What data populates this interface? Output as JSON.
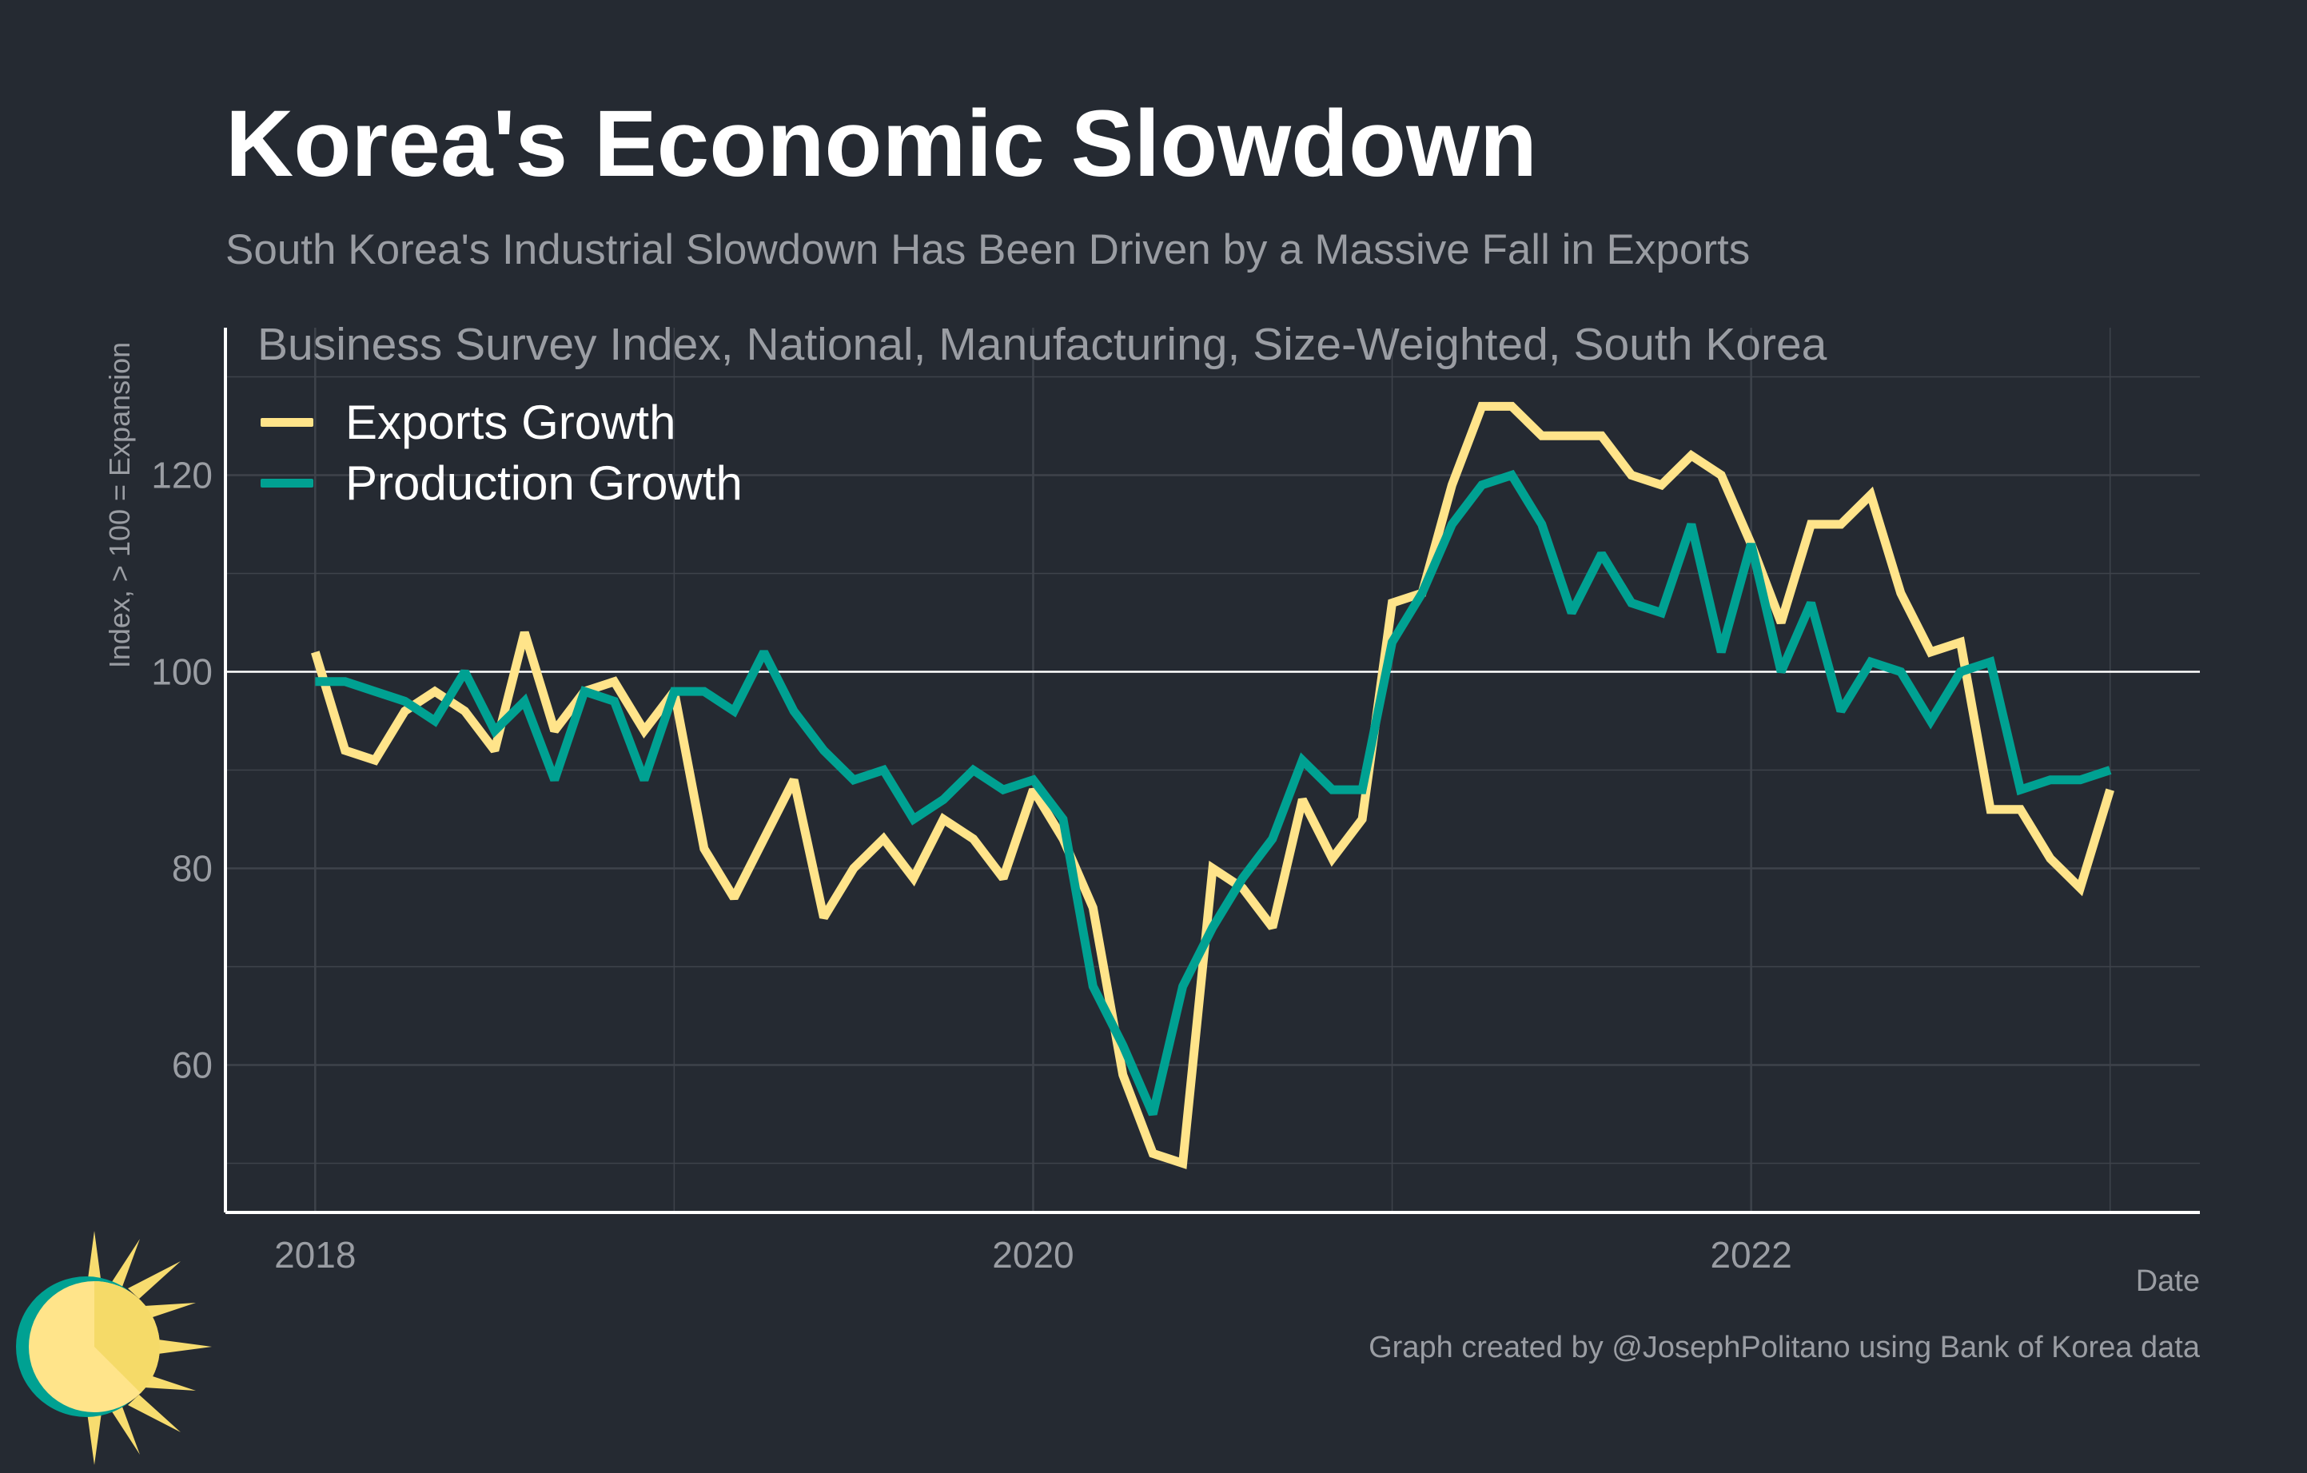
{
  "title": "Korea's Economic Slowdown",
  "subtitle": "South Korea's Industrial Slowdown Has Been Driven by a Massive Fall in Exports",
  "caption": "Graph created by @JosephPolitano using Bank of Korea data",
  "colors": {
    "background": "#252A32",
    "exports": "#FFE48A",
    "production": "#00A192",
    "grid": "#3E434B",
    "reference_line": "#FFFFFF"
  },
  "chart_data": {
    "type": "line",
    "title": "Business Survey Index, National, Manufacturing, Size-Weighted, South Korea",
    "xlabel": "Date",
    "ylabel": "Index, > 100 = Expansion",
    "x_start": "2018-01",
    "x_frequency": "monthly",
    "xlim": [
      2017.75,
      2023.25
    ],
    "ylim": [
      45,
      135
    ],
    "x_ticks": [
      2018,
      2020,
      2022
    ],
    "x_tick_labels": [
      "2018",
      "2020",
      "2022"
    ],
    "y_ticks": [
      60,
      80,
      100,
      120
    ],
    "y_tick_labels": [
      "60",
      "80",
      "100",
      "120"
    ],
    "reference_line": 100,
    "grid": true,
    "legend_position": "top-left",
    "series": [
      {
        "name": "Exports Growth",
        "color": "#FFE48A",
        "values": [
          102,
          92,
          91,
          96,
          98,
          96,
          92,
          104,
          94,
          98,
          99,
          94,
          98,
          82,
          77,
          83,
          89,
          75,
          80,
          83,
          79,
          85,
          83,
          79,
          88,
          83,
          76,
          59,
          51,
          50,
          80,
          78,
          74,
          87,
          81,
          85,
          107,
          108,
          119,
          127,
          127,
          124,
          124,
          124,
          120,
          119,
          122,
          120,
          113,
          105,
          115,
          115,
          118,
          108,
          102,
          103,
          86,
          86,
          81,
          78,
          88
        ]
      },
      {
        "name": "Production Growth",
        "color": "#00A192",
        "values": [
          99,
          99,
          98,
          97,
          95,
          100,
          94,
          97,
          89,
          98,
          97,
          89,
          98,
          98,
          96,
          102,
          96,
          92,
          89,
          90,
          85,
          87,
          90,
          88,
          89,
          85,
          68,
          62,
          55,
          68,
          74,
          79,
          83,
          91,
          88,
          88,
          103,
          108,
          115,
          119,
          120,
          115,
          106,
          112,
          107,
          106,
          115,
          102,
          113,
          100,
          107,
          96,
          101,
          100,
          95,
          100,
          101,
          88,
          89,
          89,
          90
        ]
      }
    ]
  }
}
